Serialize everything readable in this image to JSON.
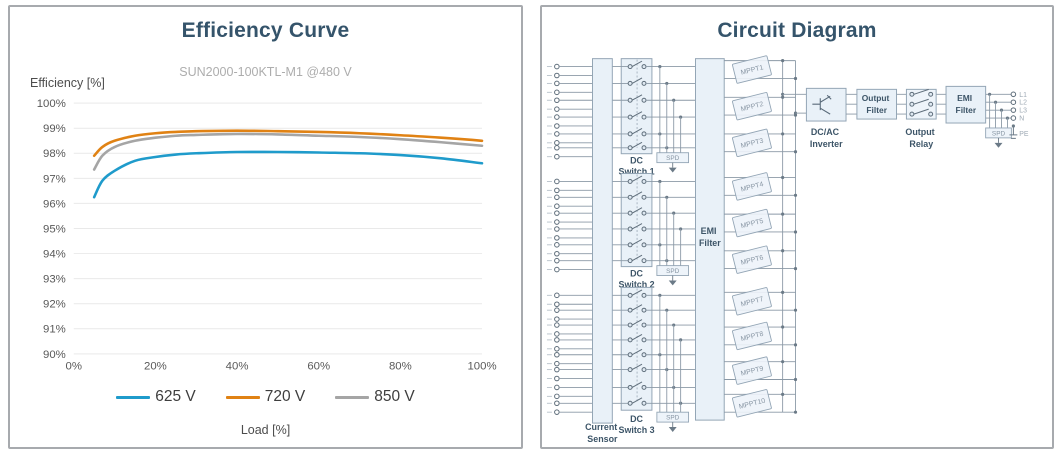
{
  "efficiency_panel": {
    "title": "Efficiency Curve",
    "subtitle": "SUN2000-100KTL-M1 @480 V",
    "y_axis_label": "Efficiency  [%]",
    "x_axis_label": "Load  [%]"
  },
  "chart_data": {
    "type": "line",
    "title": "Efficiency Curve",
    "subtitle": "SUN2000-100KTL-M1 @480 V",
    "xlabel": "Load [%]",
    "ylabel": "Efficiency [%]",
    "xlim": [
      0,
      100
    ],
    "ylim": [
      90,
      100
    ],
    "x_tick_values": [
      0,
      20,
      40,
      60,
      80,
      100
    ],
    "x_tick_labels": [
      "0%",
      "20%",
      "40%",
      "60%",
      "80%",
      "100%"
    ],
    "y_tick_labels": [
      "100%",
      "99%",
      "98%",
      "97%",
      "96%",
      "95%",
      "94%",
      "93%",
      "92%",
      "91%",
      "90%"
    ],
    "grid": "horizontal-only",
    "legend_position": "bottom",
    "x": [
      5,
      7,
      10,
      15,
      20,
      25,
      30,
      40,
      50,
      60,
      70,
      80,
      90,
      100
    ],
    "series": [
      {
        "name": "625 V",
        "color": "#1f9bcb",
        "values": [
          96.25,
          96.9,
          97.3,
          97.7,
          97.85,
          97.95,
          98.0,
          98.05,
          98.05,
          98.03,
          98.0,
          97.93,
          97.8,
          97.6
        ]
      },
      {
        "name": "720 V",
        "color": "#e08214",
        "values": [
          97.9,
          98.25,
          98.5,
          98.7,
          98.8,
          98.85,
          98.88,
          98.9,
          98.88,
          98.85,
          98.8,
          98.72,
          98.62,
          98.5
        ]
      },
      {
        "name": "850 V",
        "color": "#a5a5a5",
        "values": [
          97.35,
          97.9,
          98.25,
          98.5,
          98.62,
          98.7,
          98.73,
          98.77,
          98.75,
          98.7,
          98.65,
          98.56,
          98.44,
          98.3
        ]
      }
    ]
  },
  "circuit_panel": {
    "title": "Circuit Diagram",
    "current_sensor_label": [
      "Current",
      "Sensor"
    ],
    "dc_switch_groups": [
      {
        "label": [
          "DC",
          "Switch 1"
        ],
        "switch_count": 6
      },
      {
        "label": [
          "DC",
          "Switch 2"
        ],
        "switch_count": 6
      },
      {
        "label": [
          "DC",
          "Switch 3"
        ],
        "switch_count": 8
      }
    ],
    "spd_label": "SPD",
    "dc_emi_filter_label": [
      "EMI",
      "Filter"
    ],
    "mppt_labels": [
      "MPPT1",
      "MPPT2",
      "MPPT3",
      "MPPT4",
      "MPPT5",
      "MPPT6",
      "MPPT7",
      "MPPT8",
      "MPPT9",
      "MPPT10"
    ],
    "inverter_label": [
      "DC/AC",
      "Inverter"
    ],
    "output_filter_label": [
      "Output",
      "Filter"
    ],
    "output_relay_label": [
      "Output",
      "Relay"
    ],
    "ac_emi_filter_label": [
      "EMI",
      "Filter"
    ],
    "ac_terminals": [
      "L1",
      "L2",
      "L3",
      "N",
      "PE"
    ]
  }
}
